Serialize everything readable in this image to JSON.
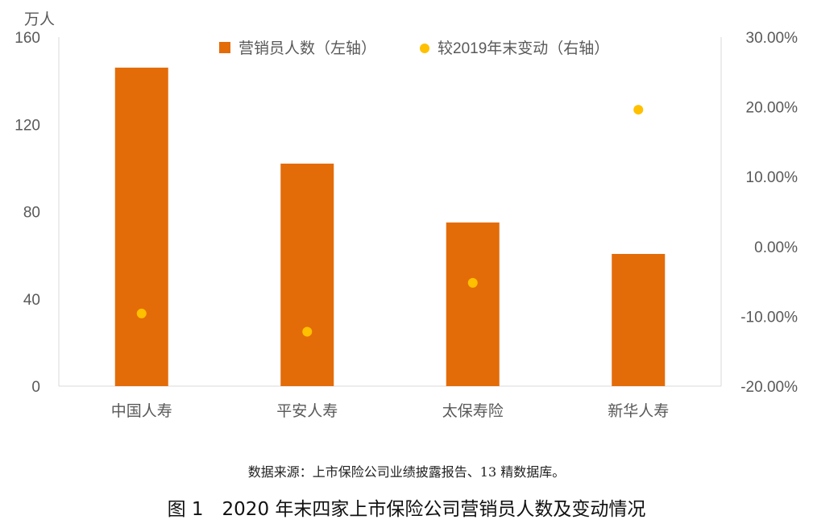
{
  "chart_data": {
    "type": "bar",
    "categories": [
      "中国人寿",
      "平安人寿",
      "太保寿险",
      "新华人寿"
    ],
    "series": [
      {
        "name": "营销员人数（左轴）",
        "kind": "bar",
        "axis": "left",
        "values": [
          146,
          102,
          75,
          60.6
        ],
        "color": "#E36C09"
      },
      {
        "name": "较2019年末变动（右轴）",
        "kind": "scatter",
        "axis": "right",
        "values": [
          -9.6,
          -12.2,
          -5.2,
          19.6
        ],
        "color": "#FFC000"
      }
    ],
    "left_axis": {
      "label": "万人",
      "ylim": [
        0,
        160
      ],
      "ticks": [
        "0",
        "40",
        "80",
        "120",
        "160"
      ]
    },
    "right_axis": {
      "ylim": [
        -20,
        30
      ],
      "ticks": [
        "-20.00%",
        "-10.00%",
        "0.00%",
        "10.00%",
        "20.00%",
        "30.00%"
      ]
    },
    "legend": "top",
    "grid": false
  },
  "source": "数据来源：上市保险公司业绩披露报告、13 精数据库。",
  "caption": "图 1　2020 年末四家上市保险公司营销员人数及变动情况"
}
